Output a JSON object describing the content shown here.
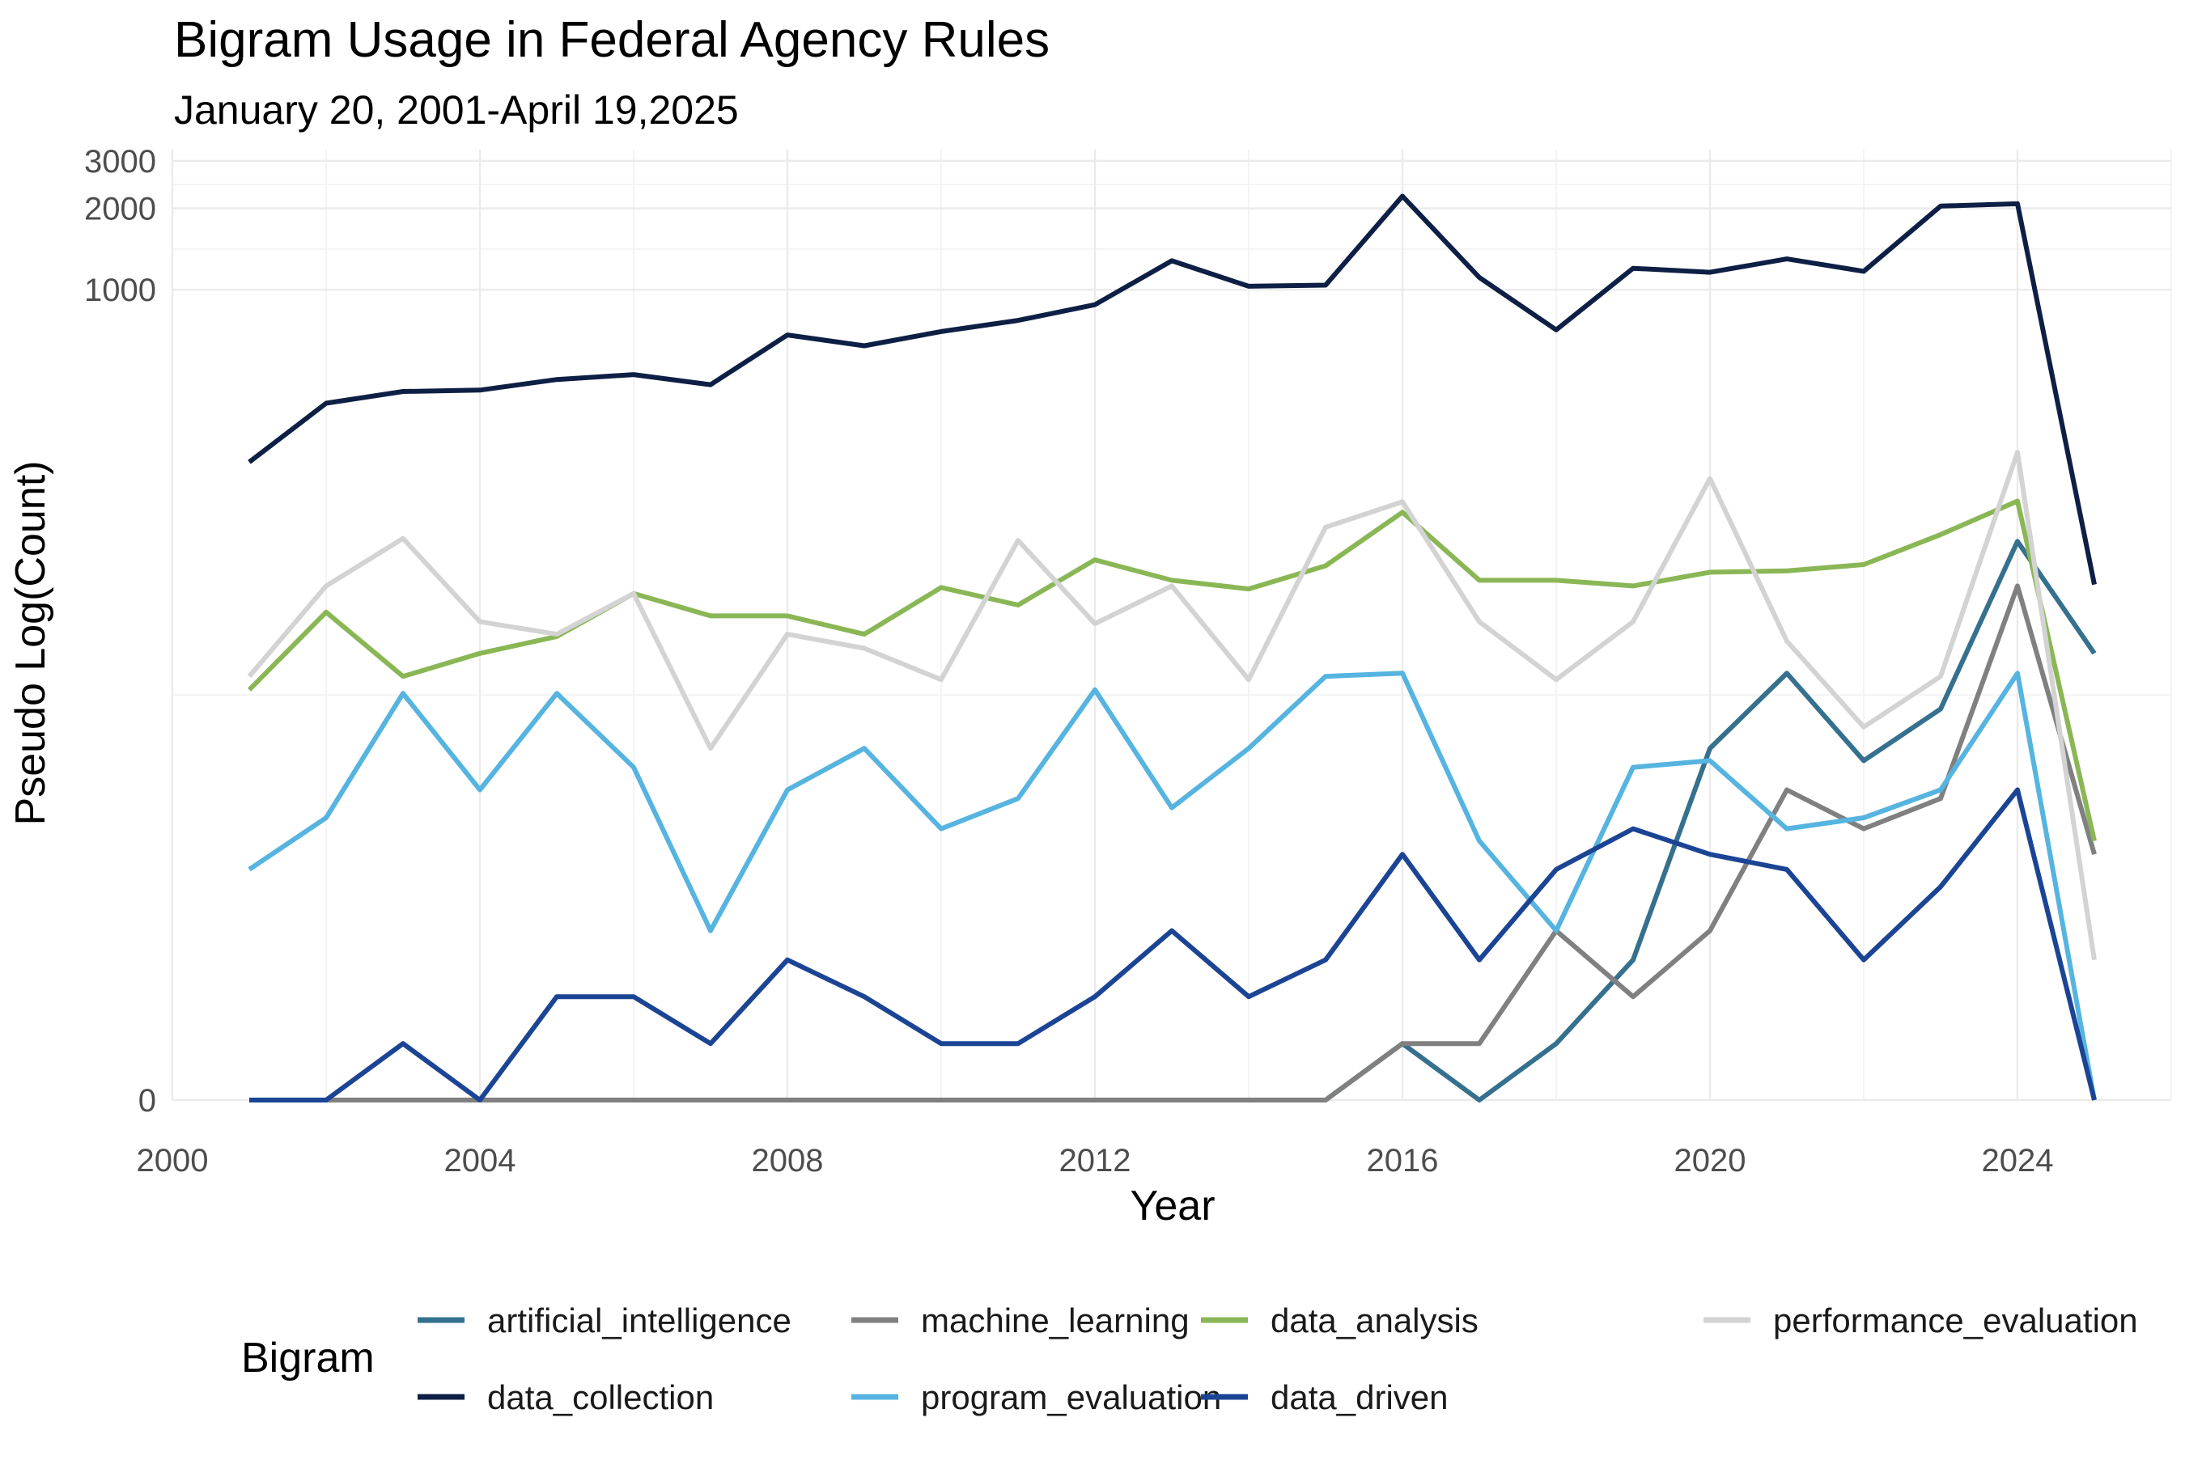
{
  "chart_data": {
    "type": "line",
    "title": "Bigram Usage in Federal Agency Rules",
    "subtitle": "January 20, 2001-April 19,2025",
    "xlabel": "Year",
    "ylabel": "Pseudo Log(Count)",
    "y_scale": "pseudo_log",
    "x_ticks": [
      "2000",
      "2004",
      "2008",
      "2012",
      "2016",
      "2020",
      "2024"
    ],
    "y_ticks": [
      "0",
      "1000",
      "2000",
      "3000"
    ],
    "xlim": [
      2000,
      2026
    ],
    "ylim": [
      0,
      3300
    ],
    "grid": true,
    "legend": {
      "title": "Bigram",
      "position": "bottom"
    },
    "x": [
      2001,
      2002,
      2003,
      2004,
      2005,
      2006,
      2007,
      2008,
      2009,
      2010,
      2011,
      2012,
      2013,
      2014,
      2015,
      2016,
      2017,
      2018,
      2019,
      2020,
      2021,
      2022,
      2023,
      2024,
      2025
    ],
    "series": [
      {
        "name": "artificial_intelligence",
        "color": "#35718e",
        "values": [
          0,
          0,
          0,
          0,
          0,
          0,
          0,
          0,
          0,
          0,
          0,
          0,
          0,
          0,
          0,
          1,
          0,
          1,
          3,
          20,
          38,
          18,
          28,
          117,
          45
        ]
      },
      {
        "name": "data_collection",
        "color": "#0e1f45",
        "values": [
          230,
          380,
          420,
          425,
          465,
          485,
          445,
          680,
          620,
          700,
          770,
          880,
          1280,
          1030,
          1040,
          2220,
          1110,
          710,
          1200,
          1160,
          1300,
          1170,
          2040,
          2080,
          81
        ]
      },
      {
        "name": "machine_learning",
        "color": "#808080",
        "values": [
          0,
          0,
          0,
          0,
          0,
          0,
          0,
          0,
          0,
          0,
          0,
          0,
          0,
          0,
          0,
          1,
          1,
          4,
          2,
          4,
          14,
          10,
          13,
          80,
          8
        ]
      },
      {
        "name": "program_evaluation",
        "color": "#56b4e0",
        "values": [
          7,
          11,
          32,
          14,
          32,
          17,
          4,
          14,
          20,
          10,
          13,
          33,
          12,
          20,
          37,
          38,
          9,
          4,
          17,
          18,
          10,
          11,
          14,
          38,
          0
        ]
      },
      {
        "name": "data_analysis",
        "color": "#8ab756",
        "values": [
          33,
          64,
          37,
          45,
          52,
          75,
          62,
          62,
          53,
          79,
          68,
          100,
          84,
          78,
          95,
          150,
          84,
          84,
          80,
          90,
          91,
          96,
          124,
          165,
          9
        ]
      },
      {
        "name": "data_driven",
        "color": "#1b4494",
        "values": [
          0,
          0,
          1,
          0,
          2,
          2,
          1,
          3,
          2,
          1,
          1,
          2,
          4,
          2,
          3,
          8,
          3,
          7,
          10,
          8,
          7,
          3,
          6,
          14,
          0
        ]
      },
      {
        "name": "performance_evaluation",
        "color": "#d3d3d3",
        "values": [
          37,
          80,
          120,
          59,
          53,
          75,
          20,
          53,
          47,
          36,
          118,
          58,
          80,
          36,
          132,
          164,
          59,
          36,
          59,
          200,
          50,
          24,
          37,
          250,
          3
        ]
      }
    ]
  }
}
